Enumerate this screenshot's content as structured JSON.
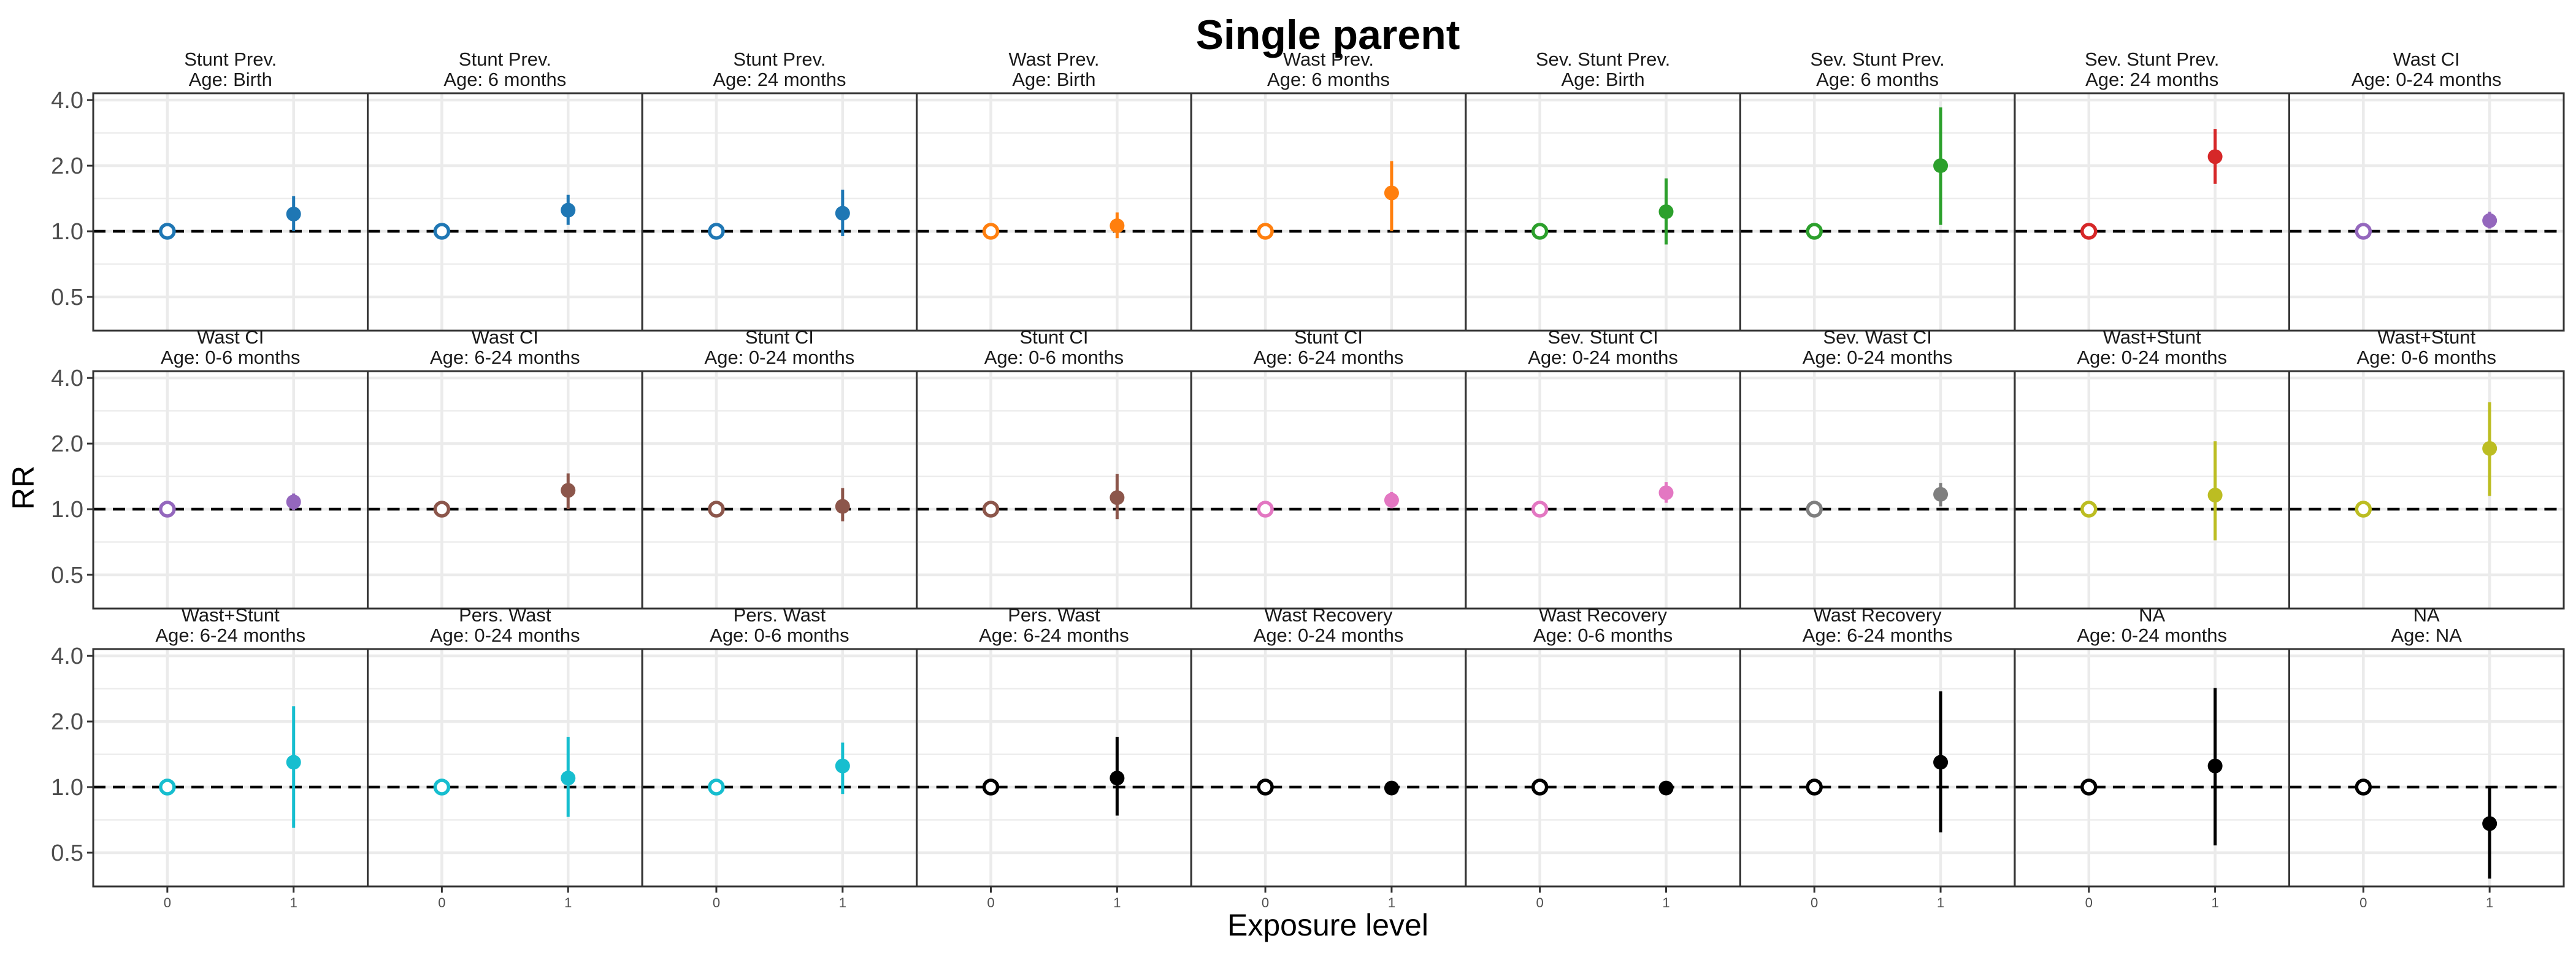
{
  "chart_data": {
    "type": "scatter",
    "title": "Single parent",
    "xlabel": "Exposure level",
    "ylabel": "RR",
    "x_categories": [
      "0",
      "1"
    ],
    "y_scale": "log",
    "ylim": [
      0.35,
      4.3
    ],
    "y_ticks": [
      0.5,
      1.0,
      2.0,
      4.0
    ],
    "y_tick_labels": [
      "0.5",
      "1.0",
      "2.0",
      "4.0"
    ],
    "reference_line": 1.0,
    "grid": true,
    "legend": "none",
    "panels": [
      {
        "strip": [
          "Stunt Prev.",
          "Age: Birth"
        ],
        "color": "#1F77B4",
        "ref": 1.0,
        "rr": 1.2,
        "lower": 1.0,
        "upper": 1.45
      },
      {
        "strip": [
          "Stunt Prev.",
          "Age: 6 months"
        ],
        "color": "#1F77B4",
        "ref": 1.0,
        "rr": 1.25,
        "lower": 1.07,
        "upper": 1.47
      },
      {
        "strip": [
          "Stunt Prev.",
          "Age: 24 months"
        ],
        "color": "#1F77B4",
        "ref": 1.0,
        "rr": 1.21,
        "lower": 0.95,
        "upper": 1.55
      },
      {
        "strip": [
          "Wast Prev.",
          "Age: Birth"
        ],
        "color": "#FF7F0E",
        "ref": 1.0,
        "rr": 1.06,
        "lower": 0.93,
        "upper": 1.22
      },
      {
        "strip": [
          "Wast Prev.",
          "Age: 6 months"
        ],
        "color": "#FF7F0E",
        "ref": 1.0,
        "rr": 1.5,
        "lower": 1.0,
        "upper": 2.1
      },
      {
        "strip": [
          "Sev. Stunt Prev.",
          "Age: Birth"
        ],
        "color": "#2CA02C",
        "ref": 1.0,
        "rr": 1.23,
        "lower": 0.87,
        "upper": 1.75
      },
      {
        "strip": [
          "Sev. Stunt Prev.",
          "Age: 6 months"
        ],
        "color": "#2CA02C",
        "ref": 1.0,
        "rr": 2.0,
        "lower": 1.07,
        "upper": 3.7
      },
      {
        "strip": [
          "Sev. Stunt Prev.",
          "Age: 24 months"
        ],
        "color": "#D62728",
        "ref": 1.0,
        "rr": 2.2,
        "lower": 1.65,
        "upper": 2.95
      },
      {
        "strip": [
          "Wast CI",
          "Age: 0-24 months"
        ],
        "color": "#9467BD",
        "ref": 1.0,
        "rr": 1.12,
        "lower": 1.03,
        "upper": 1.23
      },
      {
        "strip": [
          "Wast CI",
          "Age: 0-6 months"
        ],
        "color": "#9467BD",
        "ref": 1.0,
        "rr": 1.08,
        "lower": 0.99,
        "upper": 1.18
      },
      {
        "strip": [
          "Wast CI",
          "Age: 6-24 months"
        ],
        "color": "#8C564B",
        "ref": 1.0,
        "rr": 1.22,
        "lower": 1.0,
        "upper": 1.46
      },
      {
        "strip": [
          "Stunt CI",
          "Age: 0-24 months"
        ],
        "color": "#8C564B",
        "ref": 1.0,
        "rr": 1.03,
        "lower": 0.88,
        "upper": 1.25
      },
      {
        "strip": [
          "Stunt CI",
          "Age: 0-6 months"
        ],
        "color": "#8C564B",
        "ref": 1.0,
        "rr": 1.13,
        "lower": 0.9,
        "upper": 1.45
      },
      {
        "strip": [
          "Stunt CI",
          "Age: 6-24 months"
        ],
        "color": "#E377C2",
        "ref": 1.0,
        "rr": 1.1,
        "lower": 1.01,
        "upper": 1.2
      },
      {
        "strip": [
          "Sev. Stunt CI",
          "Age: 0-24 months"
        ],
        "color": "#E377C2",
        "ref": 1.0,
        "rr": 1.19,
        "lower": 1.07,
        "upper": 1.33
      },
      {
        "strip": [
          "Sev. Wast CI",
          "Age: 0-24 months"
        ],
        "color": "#7F7F7F",
        "ref": 1.0,
        "rr": 1.17,
        "lower": 1.03,
        "upper": 1.32
      },
      {
        "strip": [
          "Wast+Stunt",
          "Age: 0-24 months"
        ],
        "color": "#BCBD22",
        "ref": 1.0,
        "rr": 1.16,
        "lower": 0.72,
        "upper": 2.05
      },
      {
        "strip": [
          "Wast+Stunt",
          "Age: 0-6 months"
        ],
        "color": "#BCBD22",
        "ref": 1.0,
        "rr": 1.9,
        "lower": 1.15,
        "upper": 3.1
      },
      {
        "strip": [
          "Wast+Stunt",
          "Age: 6-24 months"
        ],
        "color": "#17BECF",
        "ref": 1.0,
        "rr": 1.3,
        "lower": 0.65,
        "upper": 2.35
      },
      {
        "strip": [
          "Pers. Wast",
          "Age: 0-24 months"
        ],
        "color": "#17BECF",
        "ref": 1.0,
        "rr": 1.1,
        "lower": 0.73,
        "upper": 1.7
      },
      {
        "strip": [
          "Pers. Wast",
          "Age: 0-6 months"
        ],
        "color": "#17BECF",
        "ref": 1.0,
        "rr": 1.25,
        "lower": 0.93,
        "upper": 1.6
      },
      {
        "strip": [
          "Pers. Wast",
          "Age: 6-24 months"
        ],
        "color": "#000000",
        "ref": 1.0,
        "rr": 1.1,
        "lower": 0.74,
        "upper": 1.7
      },
      {
        "strip": [
          "Wast Recovery",
          "Age: 0-24 months"
        ],
        "color": "#000000",
        "ref": 1.0,
        "rr": 0.99,
        "lower": 0.97,
        "upper": 1.02
      },
      {
        "strip": [
          "Wast Recovery",
          "Age: 0-6 months"
        ],
        "color": "#000000",
        "ref": 1.0,
        "rr": 0.99,
        "lower": 0.97,
        "upper": 1.02
      },
      {
        "strip": [
          "Wast Recovery",
          "Age: 6-24 months"
        ],
        "color": "#000000",
        "ref": 1.0,
        "rr": 1.3,
        "lower": 0.62,
        "upper": 2.75
      },
      {
        "strip": [
          "NA",
          "Age: 0-24 months"
        ],
        "color": "#000000",
        "ref": 1.0,
        "rr": 1.25,
        "lower": 0.54,
        "upper": 2.85
      },
      {
        "strip": [
          "NA",
          "Age: NA"
        ],
        "color": "#000000",
        "ref": 1.0,
        "rr": 0.68,
        "lower": 0.38,
        "upper": 1.0
      }
    ]
  }
}
